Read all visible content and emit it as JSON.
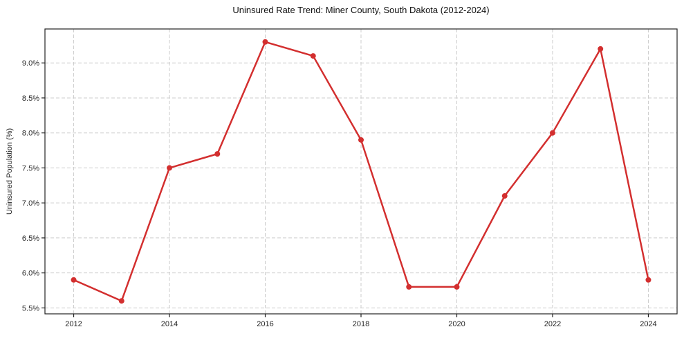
{
  "chart_data": {
    "type": "line",
    "title": "Uninsured Rate Trend: Miner County, South Dakota (2012-2024)",
    "xlabel": "",
    "ylabel": "Uninsured Population (%)",
    "x": [
      2012,
      2013,
      2014,
      2015,
      2016,
      2017,
      2018,
      2019,
      2020,
      2021,
      2022,
      2023,
      2024
    ],
    "series": [
      {
        "name": "Uninsured Rate",
        "values": [
          5.9,
          5.6,
          7.5,
          7.7,
          9.3,
          9.1,
          7.9,
          5.8,
          5.8,
          7.1,
          8.0,
          9.2,
          5.9
        ]
      }
    ],
    "xlim": [
      2011.4,
      2024.6
    ],
    "ylim": [
      5.415,
      9.485
    ],
    "xticks": [
      2012,
      2014,
      2016,
      2018,
      2020,
      2022,
      2024
    ],
    "yticks": [
      5.5,
      6.0,
      6.5,
      7.0,
      7.5,
      8.0,
      8.5,
      9.0
    ],
    "ytick_suffix": "%",
    "grid": true,
    "grid_style": "dashed",
    "legend": false,
    "marker": "circle",
    "colors": {
      "line": "#d32f2f",
      "grid": "#cccccc",
      "axis": "#222222",
      "text": "#262626"
    }
  }
}
